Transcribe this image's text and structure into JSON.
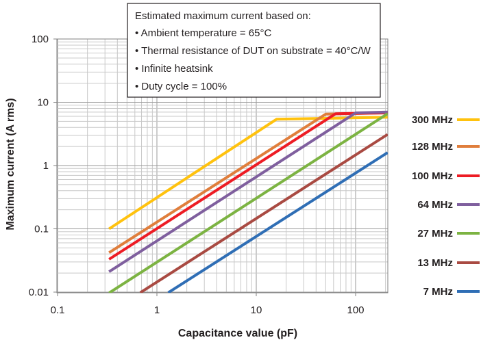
{
  "chart_data": {
    "type": "line",
    "title": "",
    "xlabel": "Capacitance value (pF)",
    "ylabel": "Maximum current (A rms)",
    "xscale": "log",
    "yscale": "log",
    "xlim": [
      0.1,
      210
    ],
    "ylim": [
      0.01,
      100
    ],
    "x_ticks": [
      "0.1",
      "1",
      "10",
      "100"
    ],
    "y_ticks": [
      "0.01",
      "0.1",
      "1",
      "10",
      "100"
    ],
    "grid": true,
    "legend_position": "right",
    "annotation": {
      "heading": "Estimated maximum current based on:",
      "lines": [
        "• Ambient temperature = 65°C",
        "• Thermal resistance of DUT on substrate = 40°C/W",
        "• Infinite heatsink",
        "• Duty cycle = 100%"
      ]
    },
    "series": [
      {
        "name": "300 MHz",
        "color": "#ffc20e",
        "points": [
          [
            0.33,
            0.1
          ],
          [
            16,
            5.4
          ],
          [
            210,
            5.8
          ]
        ]
      },
      {
        "name": "128 MHz",
        "color": "#e07e3c",
        "points": [
          [
            0.33,
            0.042
          ],
          [
            50,
            6.5
          ],
          [
            210,
            6.8
          ]
        ]
      },
      {
        "name": "100 MHz",
        "color": "#ed1c24",
        "points": [
          [
            0.33,
            0.033
          ],
          [
            63,
            6.6
          ],
          [
            210,
            6.8
          ]
        ]
      },
      {
        "name": "64 MHz",
        "color": "#7f5f9e",
        "points": [
          [
            0.33,
            0.021
          ],
          [
            100,
            6.8
          ],
          [
            210,
            7.0
          ]
        ]
      },
      {
        "name": "27 MHz",
        "color": "#7cb342",
        "points": [
          [
            0.33,
            0.0097
          ],
          [
            210,
            6.6
          ]
        ]
      },
      {
        "name": "13 MHz",
        "color": "#a94a42",
        "points": [
          [
            0.68,
            0.0098
          ],
          [
            210,
            3.1
          ]
        ]
      },
      {
        "name": "7 MHz",
        "color": "#2f6eb5",
        "points": [
          [
            1.3,
            0.0098
          ],
          [
            210,
            1.6
          ]
        ]
      }
    ]
  }
}
